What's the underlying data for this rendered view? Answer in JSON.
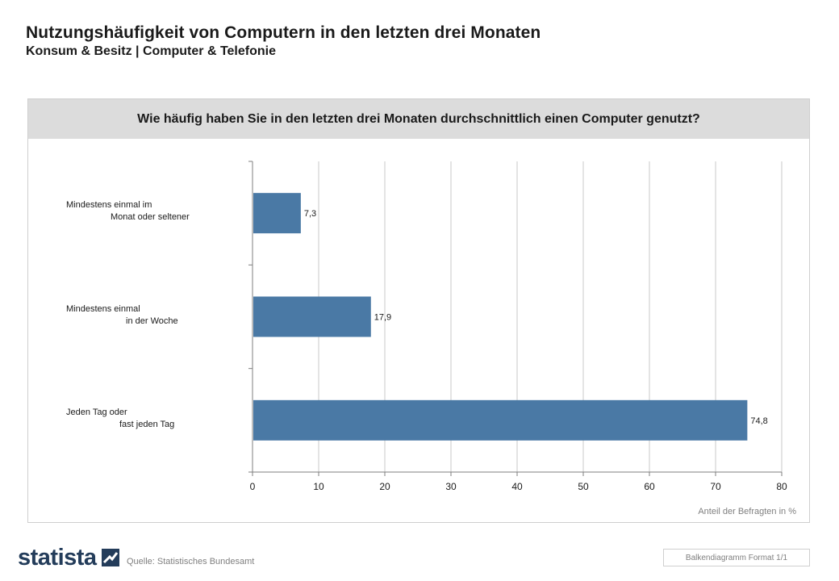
{
  "header": {
    "title": "Nutzungshäufigkeit von Computern in den letzten drei Monaten",
    "subtitle": "Konsum & Besitz | Computer & Telefonie"
  },
  "question": "Wie häufig haben Sie in den letzten drei Monaten durchschnittlich einen Computer genutzt?",
  "footer": {
    "source": "Quelle: Statistisches Bundesamt",
    "format": "Balkendiagramm Format 1/1",
    "logo_text": "statista"
  },
  "colors": {
    "bar": "#4a79a5",
    "question_bg": "#dcdcdc",
    "logo": "#233c5a"
  },
  "chart_data": {
    "type": "bar",
    "orientation": "horizontal",
    "categories": [
      [
        "Mindestens einmal im",
        "Monat oder seltener"
      ],
      [
        "Mindestens einmal",
        "in der Woche"
      ],
      [
        "Jeden Tag oder",
        "fast jeden Tag"
      ]
    ],
    "values": [
      7.3,
      17.9,
      74.8
    ],
    "value_labels": [
      "7,3",
      "17,9",
      "74,8"
    ],
    "xlim": [
      0,
      80
    ],
    "xticks": [
      0,
      10,
      20,
      30,
      40,
      50,
      60,
      70,
      80
    ],
    "xlabel": "Anteil der Befragten in %",
    "grid": true
  }
}
